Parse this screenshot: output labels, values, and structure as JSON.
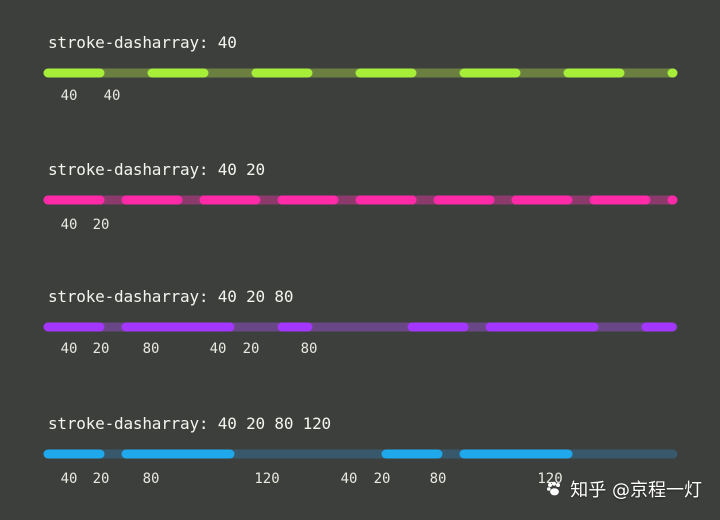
{
  "rows": [
    {
      "label": "stroke-dasharray: 40",
      "color": "#a7ee3b",
      "track_color": "#6b7f41",
      "dasharray": [
        40
      ],
      "numbers": [
        "40",
        "40"
      ]
    },
    {
      "label": "stroke-dasharray: 40 20",
      "color": "#ff2aa8",
      "track_color": "#8a3b6b",
      "dasharray": [
        40,
        20
      ],
      "numbers": [
        "40",
        "20"
      ]
    },
    {
      "label": "stroke-dasharray: 40 20 80",
      "color": "#a336ff",
      "track_color": "#694685",
      "dasharray": [
        40,
        20,
        80
      ],
      "numbers": [
        "40",
        "20",
        "80",
        "40",
        "20",
        "80"
      ]
    },
    {
      "label": "stroke-dasharray: 40 20 80 120",
      "color": "#20a8ec",
      "track_color": "#38596c",
      "dasharray": [
        40,
        20,
        80,
        120
      ],
      "numbers": [
        "40",
        "20",
        "80",
        "120",
        "40",
        "20",
        "80",
        "120"
      ]
    }
  ],
  "watermark": {
    "text": "知乎 @京程一灯",
    "icon": "paw-icon"
  }
}
